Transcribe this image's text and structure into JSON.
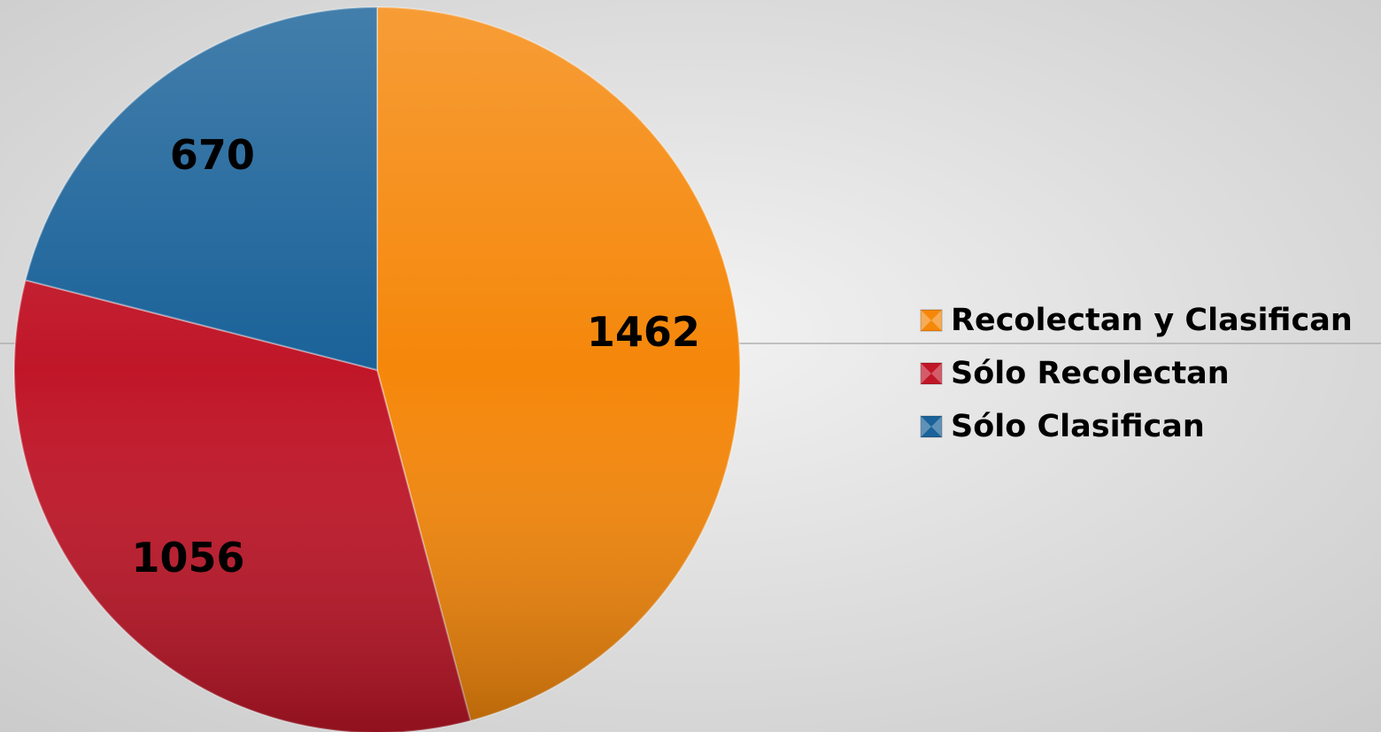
{
  "chart_data": {
    "type": "pie",
    "categories": [
      "Recolectan y Clasifican",
      "Sólo Recolectan",
      "Sólo Clasifican"
    ],
    "values": [
      1462,
      1056,
      670
    ],
    "colors": [
      "#f5870a",
      "#c01628",
      "#1a6299"
    ],
    "legend": "right"
  }
}
